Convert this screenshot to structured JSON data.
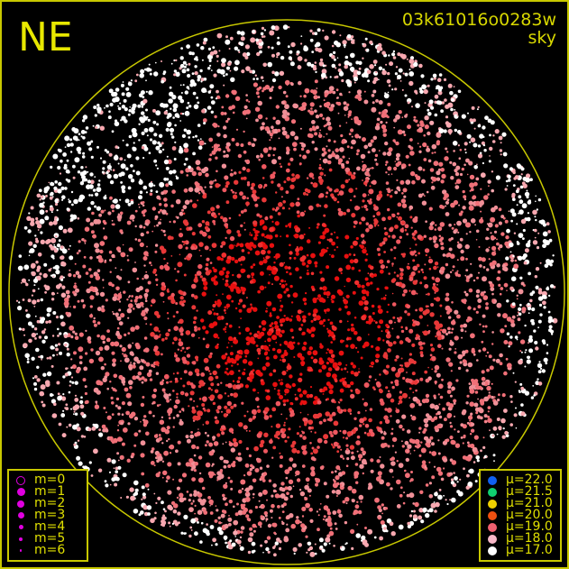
{
  "corner_label": "NE",
  "frame_id": "03k61016o0283w",
  "frame_type": "sky",
  "colors": {
    "frame": "#c8c800",
    "text": "#e0e000",
    "magnitude_symbol": "#e000e0"
  },
  "magnitude_legend": [
    {
      "label": "m=0",
      "size": 4,
      "hollow": true
    },
    {
      "label": "m=1",
      "size": 4.5
    },
    {
      "label": "m=2",
      "size": 4
    },
    {
      "label": "m=3",
      "size": 3.5
    },
    {
      "label": "m=4",
      "size": 2.5
    },
    {
      "label": "m=5",
      "size": 2
    },
    {
      "label": "m=6",
      "size": 1.2
    }
  ],
  "sky_brightness_legend": [
    {
      "label": "μ=22.0",
      "color": "#1060f0"
    },
    {
      "label": "μ=21.5",
      "color": "#10d070"
    },
    {
      "label": "μ=21.0",
      "color": "#f0d000"
    },
    {
      "label": "μ=20.0",
      "color": "#f05010"
    },
    {
      "label": "μ=19.0",
      "color": "#f06070"
    },
    {
      "label": "μ=18.0",
      "color": "#f8b8c8"
    },
    {
      "label": "μ=17.0",
      "color": "#ffffff"
    }
  ]
}
